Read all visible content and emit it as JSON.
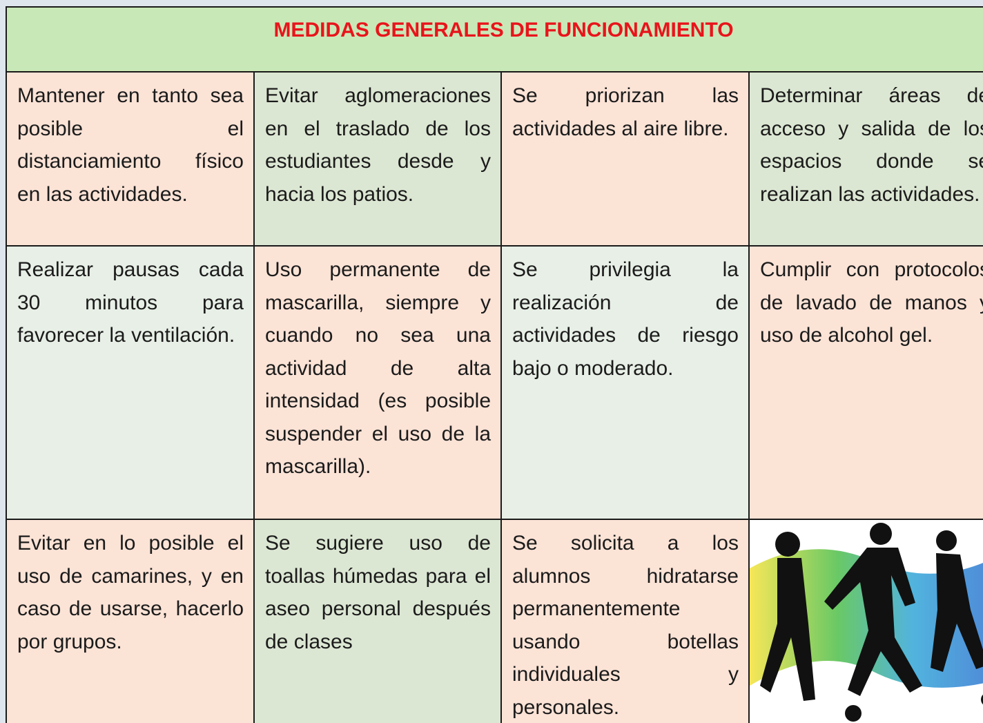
{
  "header": {
    "title": "MEDIDAS GENERALES DE FUNCIONAMIENTO"
  },
  "table": {
    "rows": [
      [
        "Mantener en tanto sea posible el distanciamiento físico en las actividades.",
        "Evitar aglomeraciones en el traslado de los estudiantes desde y hacia los patios.",
        "Se priorizan las actividades al aire libre.",
        "Determinar áreas de acceso y salida de los espacios donde se realizan las actividades."
      ],
      [
        "Realizar pausas cada 30 minutos para favorecer la ventilación.",
        "Uso permanente de mascarilla, siempre y cuando no sea una actividad de alta intensidad (es posible suspender el uso de la mascarilla).",
        "Se privilegia la realización de actividades de riesgo bajo o moderado.",
        "Cumplir con protocolos de lavado de manos y uso de alcohol gel."
      ],
      [
        "Evitar en lo posible el uso de camarines, y en caso de usarse, hacerlo por grupos.",
        "Se sugiere uso de toallas húmedas para el aseo personal después de clases",
        "Se solicita a los alumnos hidratarse permanentemente usando botellas individuales y personales."
      ]
    ]
  }
}
